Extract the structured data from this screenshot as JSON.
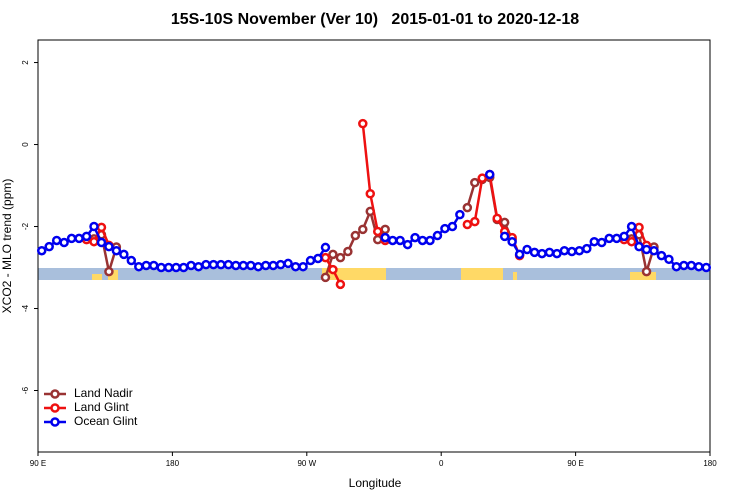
{
  "chart_data": {
    "type": "line",
    "title": "15S-10S November (Ver 10)   2015-01-01 to 2020-12-18",
    "x_label": "Longitude",
    "y_label": "XCO2 - MLO trend (ppm)",
    "xlim": [
      90,
      540
    ],
    "ylim": [
      -7.5,
      2.55
    ],
    "xticks": [
      {
        "value": 90,
        "label": "90 E"
      },
      180,
      {
        "value": 270,
        "label": "90 W"
      },
      {
        "value": 360,
        "label": "0"
      },
      {
        "value": 450,
        "label": "90 E"
      },
      {
        "value": 540,
        "label": "180"
      }
    ],
    "yticks": [
      2,
      0,
      -2,
      -4,
      -6
    ],
    "legend": "bottom-left",
    "x": [
      92.5,
      97.5,
      102.5,
      107.5,
      112.5,
      117.5,
      122.5,
      127.5,
      132.5,
      137.5,
      142.5,
      147.5,
      152.5,
      157.5,
      162.5,
      167.5,
      172.5,
      177.5,
      182.5,
      187.5,
      192.5,
      197.5,
      202.5,
      207.5,
      212.5,
      217.5,
      222.5,
      227.5,
      232.5,
      237.5,
      242.5,
      247.5,
      252.5,
      257.5,
      262.5,
      267.5,
      272.5,
      277.5,
      282.5,
      287.5,
      292.5,
      297.5,
      302.5,
      307.5,
      312.5,
      317.5,
      322.5,
      327.5,
      332.5,
      337.5,
      342.5,
      347.5,
      352.5,
      357.5,
      362.5,
      367.5,
      372.5,
      377.5,
      382.5,
      387.5,
      392.5,
      397.5,
      402.5,
      407.5,
      412.5,
      417.5,
      422.5,
      427.5,
      432.5,
      437.5,
      442.5,
      447.5,
      452.5,
      457.5,
      462.5,
      467.5,
      472.5,
      477.5,
      482.5,
      487.5,
      492.5,
      497.5,
      502.5,
      507.5,
      512.5,
      517.5,
      522.5,
      527.5,
      532.5,
      537.5
    ],
    "series": [
      {
        "name": "Land Nadir",
        "color": "#993333",
        "values": [
          null,
          null,
          null,
          null,
          null,
          null,
          null,
          -2.3,
          -2.2,
          -3.1,
          -2.5,
          null,
          null,
          null,
          null,
          null,
          null,
          null,
          null,
          null,
          null,
          null,
          null,
          null,
          null,
          null,
          null,
          null,
          null,
          null,
          null,
          null,
          null,
          null,
          null,
          null,
          null,
          null,
          -3.24,
          -2.68,
          -2.76,
          -2.61,
          -2.22,
          -2.07,
          -1.63,
          -2.32,
          -2.07,
          null,
          null,
          null,
          null,
          null,
          null,
          null,
          null,
          null,
          null,
          -1.54,
          -0.93,
          -0.85,
          -0.8,
          -1.83,
          -1.9,
          -2.32,
          null,
          null,
          null,
          null,
          null,
          null,
          null,
          null,
          null,
          null,
          null,
          null,
          null,
          null,
          null,
          -2.3,
          -2.2,
          -3.1,
          -2.5,
          null,
          null,
          null,
          null,
          null,
          null,
          null
        ]
      },
      {
        "name": "Land Glint",
        "color": "#ee1111",
        "values": [
          null,
          null,
          null,
          null,
          null,
          null,
          -2.32,
          -2.37,
          -2.02,
          -2.46,
          null,
          null,
          null,
          null,
          null,
          null,
          null,
          null,
          null,
          null,
          null,
          null,
          null,
          null,
          null,
          null,
          null,
          null,
          null,
          null,
          null,
          null,
          null,
          null,
          null,
          null,
          null,
          null,
          -2.76,
          -3.05,
          -3.41,
          null,
          null,
          0.51,
          -1.2,
          -2.12,
          -2.34,
          null,
          null,
          null,
          null,
          null,
          null,
          null,
          null,
          null,
          null,
          -1.95,
          -1.88,
          -0.82,
          -0.73,
          -1.8,
          -2.12,
          -2.27,
          -2.71,
          null,
          null,
          null,
          null,
          null,
          null,
          null,
          null,
          null,
          null,
          null,
          null,
          null,
          -2.32,
          -2.37,
          -2.02,
          -2.46,
          null,
          null,
          null,
          null,
          null,
          null,
          null,
          null
        ]
      },
      {
        "name": "Ocean Glint",
        "color": "#0000ee",
        "values": [
          -2.59,
          -2.49,
          -2.34,
          -2.39,
          -2.29,
          -2.29,
          -2.24,
          -2.0,
          -2.39,
          -2.49,
          -2.59,
          -2.68,
          -2.83,
          -2.98,
          -2.95,
          -2.95,
          -3.0,
          -3.0,
          -3.0,
          -3.0,
          -2.95,
          -2.98,
          -2.93,
          -2.93,
          -2.93,
          -2.93,
          -2.95,
          -2.95,
          -2.95,
          -2.98,
          -2.95,
          -2.95,
          -2.93,
          -2.9,
          -2.98,
          -2.98,
          -2.83,
          -2.78,
          -2.51,
          null,
          null,
          null,
          null,
          null,
          null,
          null,
          -2.27,
          -2.34,
          -2.34,
          -2.44,
          -2.27,
          -2.34,
          -2.34,
          -2.22,
          -2.05,
          -2.0,
          -1.71,
          null,
          null,
          null,
          -0.73,
          null,
          -2.24,
          -2.37,
          -2.68,
          -2.56,
          -2.63,
          -2.66,
          -2.63,
          -2.66,
          -2.59,
          -2.61,
          -2.59,
          -2.54,
          -2.37,
          -2.39,
          -2.29,
          -2.29,
          -2.24,
          -2.0,
          -2.49,
          -2.56,
          -2.59,
          -2.71,
          -2.8,
          -2.98,
          -2.95,
          -2.95,
          -2.98,
          -3.0
        ]
      }
    ]
  }
}
